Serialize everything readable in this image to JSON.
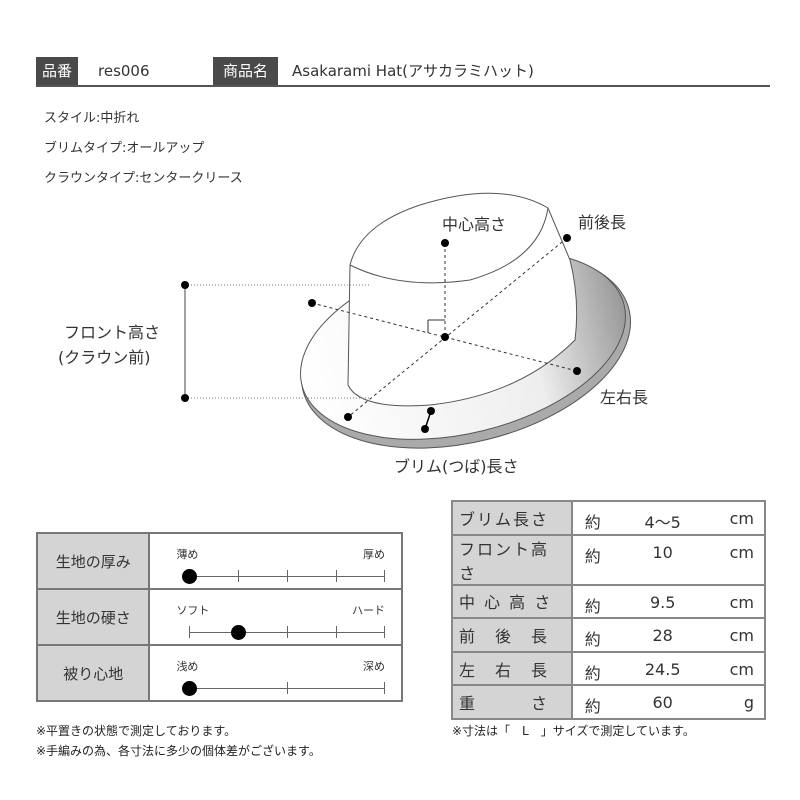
{
  "header": {
    "code_label": "品番",
    "code_value": "res006",
    "name_label": "商品名",
    "name_value": "Asakarami Hat(アサカラミハット)"
  },
  "attributes": [
    "スタイル:中折れ",
    "ブリムタイプ:オールアップ",
    "クラウンタイプ:センタークリース"
  ],
  "diagram": {
    "center_height": "中心高さ",
    "front_back": "前後長",
    "left_right": "左右長",
    "brim_length": "ブリム(つば)長さ",
    "front_height_1": "フロント高さ",
    "front_height_2": "(クラウン前)"
  },
  "sliders": [
    {
      "label": "生地の厚み",
      "min_label": "薄め",
      "max_label": "厚め",
      "steps": 5,
      "value_index": 0
    },
    {
      "label": "生地の硬さ",
      "min_label": "ソフト",
      "max_label": "ハード",
      "steps": 5,
      "value_index": 1
    },
    {
      "label": "被り心地",
      "min_label": "浅め",
      "max_label": "深め",
      "steps": 3,
      "value_index": 0
    }
  ],
  "specs": [
    {
      "label": "ブリム長さ",
      "prefix": "約",
      "value": "4～5",
      "unit": "cm"
    },
    {
      "label": "フロント高さ",
      "prefix": "約",
      "value": "10",
      "unit": "cm"
    },
    {
      "label": "中 心 高 さ",
      "prefix": "約",
      "value": "9.5",
      "unit": "cm"
    },
    {
      "label": "前　後　長",
      "prefix": "約",
      "value": "28",
      "unit": "cm"
    },
    {
      "label": "左　右　長",
      "prefix": "約",
      "value": "24.5",
      "unit": "cm"
    },
    {
      "label": "重　　　さ",
      "prefix": "約",
      "value": "60",
      "unit": "g"
    }
  ],
  "notes_left": [
    "※平置きの状態で測定しております。",
    "※手編みの為、各寸法に多少の個体差がございます。"
  ],
  "note_right": "※寸法は「　L　」サイズで測定しています。"
}
